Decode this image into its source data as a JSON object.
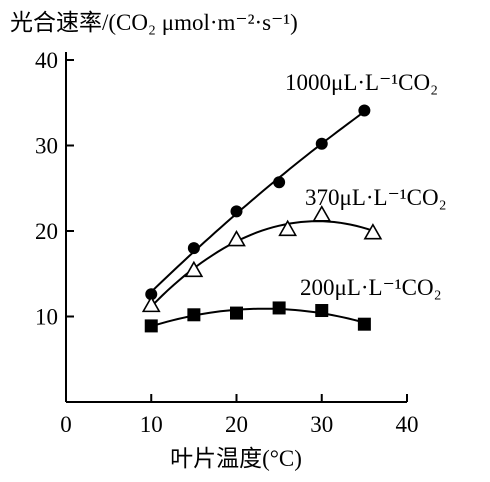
{
  "chart_data": {
    "type": "scatter",
    "y_label": "光合速率/(CO₂ μmol·m⁻²·s⁻¹)",
    "x_label": "叶片温度(°C)",
    "xlim": [
      0,
      40
    ],
    "xticks": [
      0,
      10,
      20,
      30,
      40
    ],
    "ylim": [
      0,
      40
    ],
    "yticks": [
      10,
      20,
      30,
      40
    ],
    "trend": "quadratic",
    "series": [
      {
        "name": "1000μL·L⁻¹CO₂",
        "color": "#000000",
        "marker": "circle",
        "x": [
          10,
          15,
          20,
          25,
          30,
          35
        ],
        "values": [
          12.6,
          18,
          22.3,
          25.7,
          30.2,
          34.1
        ]
      },
      {
        "name": "370μL·L⁻¹CO₂",
        "color": "#000000",
        "marker": "triangle-open",
        "x": [
          10,
          15,
          20,
          26,
          30,
          36
        ],
        "values": [
          11.3,
          15.4,
          19,
          20.2,
          21.9,
          19.8
        ]
      },
      {
        "name": "200μL·L⁻¹CO₂",
        "color": "#000000",
        "marker": "square",
        "x": [
          10,
          15,
          20,
          25,
          30,
          35
        ],
        "values": [
          8.9,
          10.2,
          10.4,
          11,
          10.7,
          9.1
        ]
      }
    ]
  }
}
